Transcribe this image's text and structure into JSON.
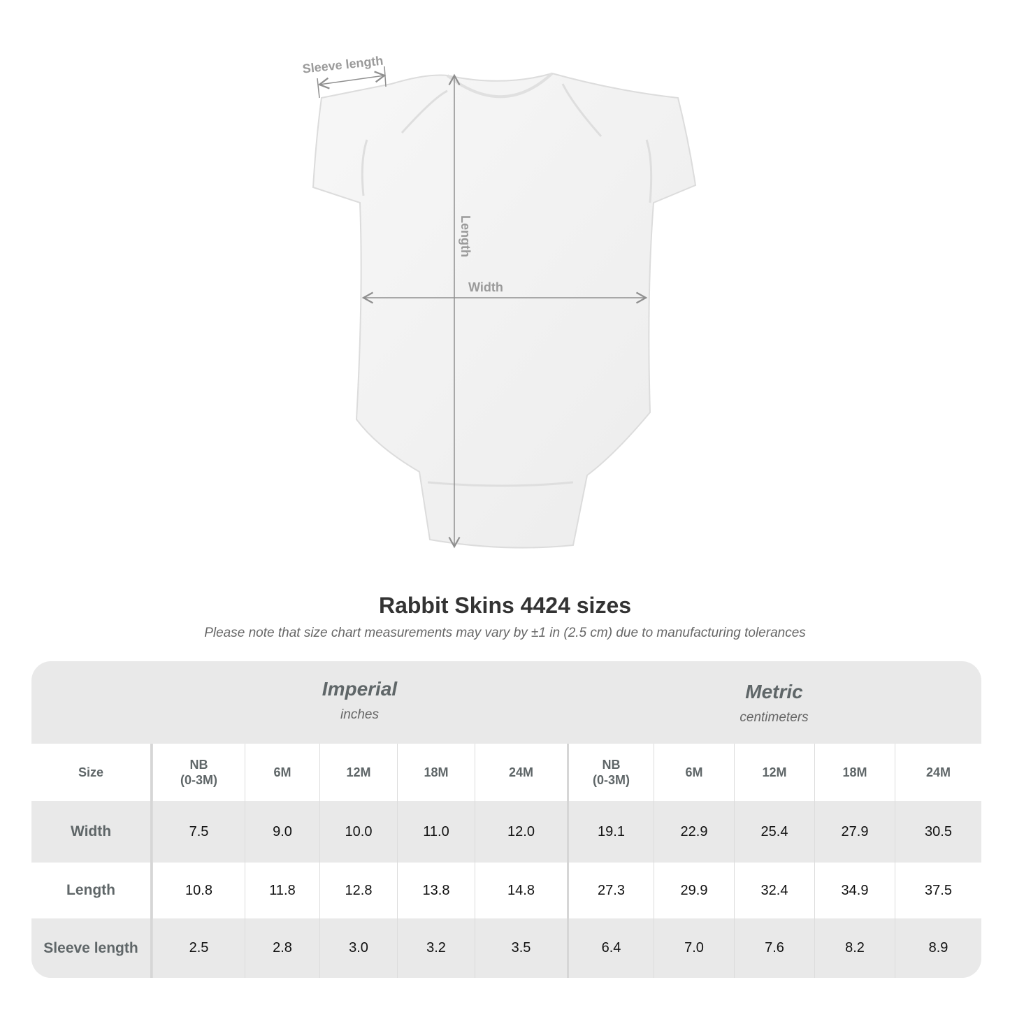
{
  "diagram": {
    "labels": {
      "sleeve": "Sleeve length",
      "length": "Length",
      "width": "Width"
    },
    "colors": {
      "garment": "#f3f3f3",
      "measure_line": "#8f8f8f"
    }
  },
  "title": "Rabbit Skins 4424 sizes",
  "note": "Please note that size chart measurements may vary by ±1 in (2.5 cm) due to manufacturing tolerances",
  "table": {
    "imperial": {
      "name": "Imperial",
      "unit": "inches"
    },
    "metric": {
      "name": "Metric",
      "unit": "centimeters"
    },
    "size_label": "Size",
    "sizes": [
      "NB\n(0-3M)",
      "6M",
      "12M",
      "18M",
      "24M"
    ],
    "rows": [
      {
        "label": "Width",
        "imperial": [
          "7.5",
          "9.0",
          "10.0",
          "11.0",
          "12.0"
        ],
        "metric": [
          "19.1",
          "22.9",
          "25.4",
          "27.9",
          "30.5"
        ]
      },
      {
        "label": "Length",
        "imperial": [
          "10.8",
          "11.8",
          "12.8",
          "13.8",
          "14.8"
        ],
        "metric": [
          "27.3",
          "29.9",
          "32.4",
          "34.9",
          "37.5"
        ]
      },
      {
        "label": "Sleeve length",
        "imperial": [
          "2.5",
          "2.8",
          "3.0",
          "3.2",
          "3.5"
        ],
        "metric": [
          "6.4",
          "7.0",
          "7.6",
          "8.2",
          "8.9"
        ]
      }
    ],
    "colors": {
      "header_bg": "#e9e9e9",
      "label_text": "#5f6668"
    }
  }
}
